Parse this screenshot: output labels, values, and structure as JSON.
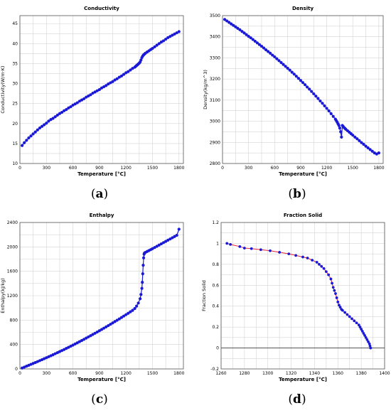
{
  "chart_data": [
    {
      "type": "scatter",
      "title": "Conductivity",
      "xlabel": "Temperature [°C]",
      "ylabel": "Conductivity(W/m·K)",
      "xlim": [
        0,
        1850
      ],
      "ylim": [
        10,
        47
      ],
      "xticks": [
        0,
        300,
        600,
        900,
        1200,
        1500,
        1800
      ],
      "yticks": [
        10,
        15,
        20,
        25,
        30,
        35,
        40,
        45
      ],
      "grid": true,
      "x": [
        25,
        50,
        75,
        100,
        125,
        150,
        175,
        200,
        225,
        250,
        275,
        300,
        325,
        350,
        375,
        400,
        425,
        450,
        475,
        500,
        525,
        550,
        575,
        600,
        625,
        650,
        675,
        700,
        725,
        750,
        775,
        800,
        825,
        850,
        875,
        900,
        925,
        950,
        975,
        1000,
        1025,
        1050,
        1075,
        1100,
        1125,
        1150,
        1175,
        1200,
        1225,
        1250,
        1275,
        1300,
        1310,
        1320,
        1330,
        1340,
        1350,
        1360,
        1370,
        1380,
        1390,
        1400,
        1410,
        1420,
        1440,
        1460,
        1480,
        1500,
        1525,
        1550,
        1575,
        1600,
        1625,
        1650,
        1675,
        1700,
        1725,
        1750,
        1775,
        1800
      ],
      "values": [
        14.5,
        15.2,
        15.8,
        16.4,
        16.9,
        17.4,
        17.9,
        18.4,
        18.9,
        19.3,
        19.7,
        20.1,
        20.6,
        21.0,
        21.3,
        21.7,
        22.1,
        22.5,
        22.8,
        23.2,
        23.5,
        23.9,
        24.2,
        24.6,
        24.9,
        25.2,
        25.6,
        25.9,
        26.2,
        26.6,
        26.9,
        27.2,
        27.6,
        27.9,
        28.2,
        28.5,
        28.9,
        29.2,
        29.5,
        29.9,
        30.2,
        30.5,
        30.9,
        31.2,
        31.6,
        31.9,
        32.3,
        32.7,
        33.0,
        33.4,
        33.8,
        34.1,
        34.3,
        34.5,
        34.7,
        34.9,
        35.1,
        35.4,
        35.9,
        36.5,
        36.9,
        37.2,
        37.4,
        37.6,
        37.9,
        38.2,
        38.5,
        38.8,
        39.2,
        39.6,
        40.0,
        40.4,
        40.7,
        41.1,
        41.5,
        41.8,
        42.1,
        42.4,
        42.7,
        43.0
      ]
    },
    {
      "type": "scatter",
      "title": "Density",
      "xlabel": "Temperature [°C]",
      "ylabel": "Density(kg/m^3)",
      "xlim": [
        0,
        1850
      ],
      "ylim": [
        2800,
        3500
      ],
      "xticks": [
        0,
        300,
        600,
        900,
        1200,
        1500,
        1800
      ],
      "yticks": [
        2800,
        2900,
        3000,
        3100,
        3200,
        3300,
        3400,
        3500
      ],
      "grid": true,
      "x": [
        25,
        50,
        75,
        100,
        125,
        150,
        175,
        200,
        225,
        250,
        275,
        300,
        325,
        350,
        375,
        400,
        425,
        450,
        475,
        500,
        525,
        550,
        575,
        600,
        625,
        650,
        675,
        700,
        725,
        750,
        775,
        800,
        825,
        850,
        875,
        900,
        925,
        950,
        975,
        1000,
        1025,
        1050,
        1075,
        1100,
        1125,
        1150,
        1175,
        1200,
        1225,
        1250,
        1275,
        1300,
        1310,
        1320,
        1330,
        1340,
        1350,
        1360,
        1370,
        1380,
        1390,
        1400,
        1410,
        1420,
        1440,
        1460,
        1480,
        1500,
        1525,
        1550,
        1575,
        1600,
        1625,
        1650,
        1675,
        1700,
        1725,
        1750,
        1775,
        1800
      ],
      "values": [
        3482,
        3475,
        3468,
        3461,
        3454,
        3447,
        3440,
        3433,
        3425,
        3418,
        3410,
        3402,
        3395,
        3387,
        3379,
        3371,
        3363,
        3355,
        3347,
        3338,
        3330,
        3322,
        3313,
        3305,
        3296,
        3287,
        3278,
        3269,
        3260,
        3251,
        3242,
        3232,
        3223,
        3213,
        3203,
        3193,
        3183,
        3173,
        3162,
        3152,
        3141,
        3130,
        3119,
        3108,
        3096,
        3085,
        3073,
        3061,
        3049,
        3036,
        3023,
        3010,
        3003,
        2996,
        2988,
        2980,
        2968,
        2950,
        2925,
        2980,
        2975,
        2970,
        2966,
        2962,
        2955,
        2948,
        2941,
        2934,
        2925,
        2917,
        2908,
        2899,
        2891,
        2882,
        2874,
        2866,
        2858,
        2850,
        2845,
        2850
      ]
    },
    {
      "type": "scatter",
      "title": "Enthalpy",
      "xlabel": "Temperature [°C]",
      "ylabel": "Enthalpy(kJ/kg)",
      "xlim": [
        0,
        1850
      ],
      "ylim": [
        0,
        2400
      ],
      "xticks": [
        0,
        300,
        600,
        900,
        1200,
        1500,
        1800
      ],
      "yticks": [
        0,
        400,
        800,
        1200,
        1600,
        2000,
        2400
      ],
      "grid": true,
      "x": [
        25,
        50,
        75,
        100,
        125,
        150,
        175,
        200,
        225,
        250,
        275,
        300,
        325,
        350,
        375,
        400,
        425,
        450,
        475,
        500,
        525,
        550,
        575,
        600,
        625,
        650,
        675,
        700,
        725,
        750,
        775,
        800,
        825,
        850,
        875,
        900,
        925,
        950,
        975,
        1000,
        1025,
        1050,
        1075,
        1100,
        1125,
        1150,
        1175,
        1200,
        1225,
        1250,
        1275,
        1300,
        1320,
        1340,
        1360,
        1370,
        1380,
        1385,
        1390,
        1395,
        1400,
        1405,
        1410,
        1420,
        1440,
        1460,
        1480,
        1500,
        1525,
        1550,
        1575,
        1600,
        1625,
        1650,
        1675,
        1700,
        1725,
        1750,
        1775,
        1800
      ],
      "values": [
        15,
        30,
        45,
        60,
        75,
        90,
        105,
        120,
        136,
        152,
        168,
        184,
        200,
        216,
        233,
        250,
        267,
        284,
        301,
        318,
        336,
        354,
        372,
        390,
        409,
        428,
        447,
        466,
        485,
        505,
        525,
        545,
        565,
        585,
        605,
        626,
        647,
        668,
        689,
        710,
        732,
        754,
        776,
        798,
        820,
        843,
        866,
        889,
        912,
        936,
        960,
        990,
        1030,
        1080,
        1150,
        1220,
        1320,
        1420,
        1560,
        1700,
        1820,
        1880,
        1900,
        1910,
        1925,
        1940,
        1955,
        1970,
        1990,
        2010,
        2030,
        2050,
        2070,
        2090,
        2110,
        2130,
        2150,
        2170,
        2190,
        2290
      ]
    },
    {
      "type": "line",
      "title": "Fraction Solid",
      "xlabel": "Temperature [°C]",
      "ylabel": "Fraction Solid",
      "xlim": [
        1260,
        1400
      ],
      "ylim": [
        -0.2,
        1.2
      ],
      "xticks": [
        1260,
        1280,
        1300,
        1320,
        1340,
        1360,
        1380,
        1400
      ],
      "yticks": [
        -0.2,
        0,
        0.2,
        0.4,
        0.6,
        0.8,
        1,
        1.2
      ],
      "grid": true,
      "x": [
        1265,
        1268,
        1276,
        1280,
        1286,
        1294,
        1302,
        1310,
        1318,
        1324,
        1330,
        1334,
        1338,
        1342,
        1344,
        1346,
        1348,
        1350,
        1352,
        1354,
        1355,
        1356,
        1357,
        1358,
        1359,
        1360,
        1361,
        1362,
        1363,
        1364,
        1366,
        1368,
        1370,
        1372,
        1374,
        1376,
        1378,
        1379,
        1380,
        1381,
        1382,
        1383,
        1384,
        1385,
        1386,
        1387,
        1387.5,
        1388
      ],
      "values": [
        1.0,
        0.99,
        0.97,
        0.955,
        0.95,
        0.94,
        0.93,
        0.915,
        0.9,
        0.885,
        0.87,
        0.86,
        0.84,
        0.82,
        0.8,
        0.78,
        0.76,
        0.73,
        0.7,
        0.66,
        0.62,
        0.58,
        0.55,
        0.52,
        0.48,
        0.44,
        0.41,
        0.39,
        0.37,
        0.36,
        0.34,
        0.32,
        0.3,
        0.28,
        0.26,
        0.24,
        0.22,
        0.2,
        0.18,
        0.16,
        0.14,
        0.12,
        0.1,
        0.08,
        0.06,
        0.04,
        0.02,
        0.0
      ]
    }
  ],
  "captions": [
    {
      "open": "(",
      "letter": "a",
      "close": ")"
    },
    {
      "open": "(",
      "letter": "b",
      "close": ")"
    },
    {
      "open": "(",
      "letter": "c",
      "close": ")"
    },
    {
      "open": "(",
      "letter": "d",
      "close": ")"
    }
  ]
}
